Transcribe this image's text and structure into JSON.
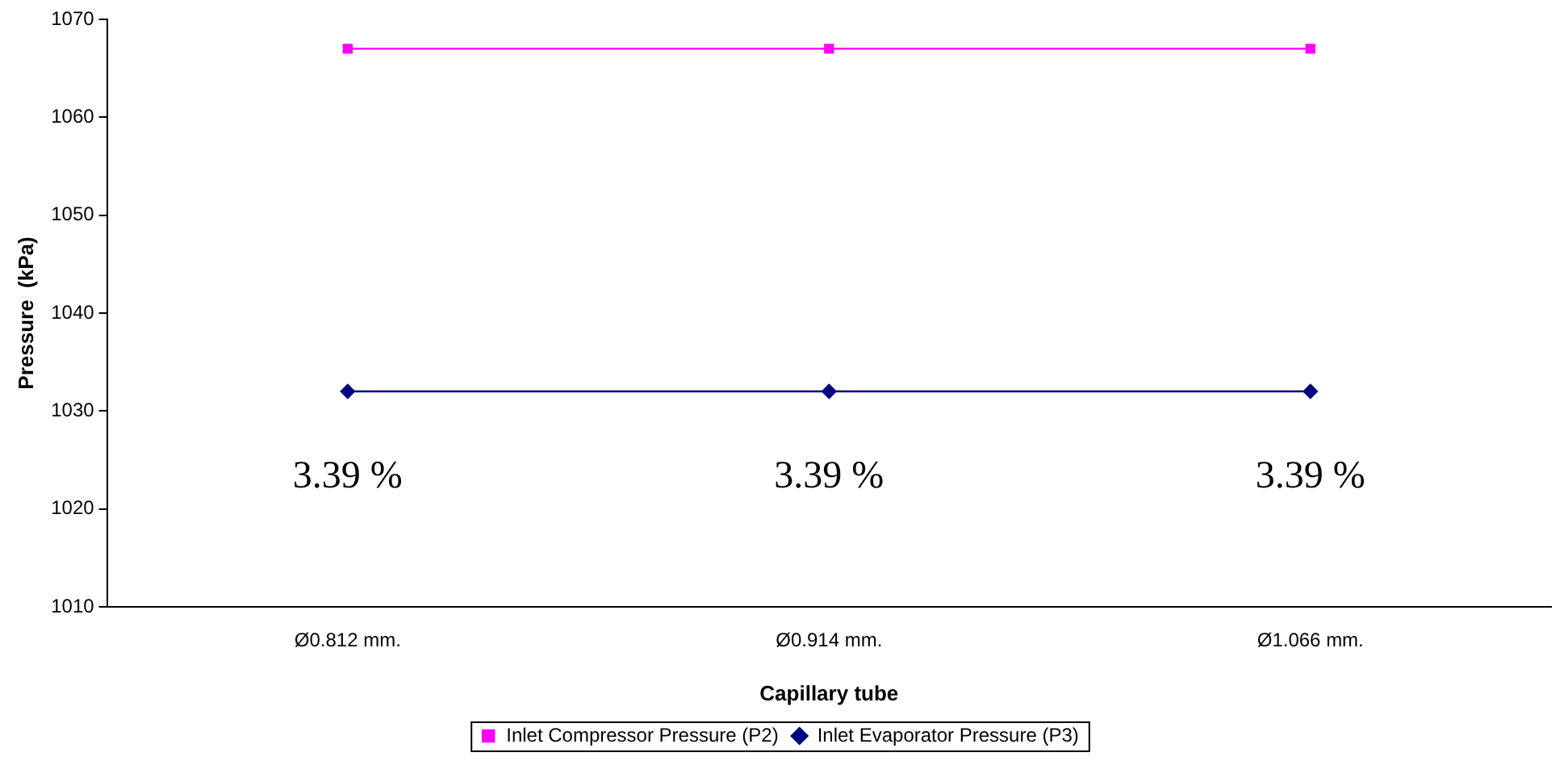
{
  "chart_data": {
    "type": "line",
    "xlabel": "Capillary tube",
    "ylabel": "Pressure  (kPa)",
    "categories": [
      "Ø0.812 mm.",
      "Ø0.914 mm.",
      "Ø1.066 mm."
    ],
    "series": [
      {
        "name": "Inlet Compressor Pressure (P2)",
        "color": "#ff00ff",
        "values": [
          1067,
          1067,
          1067
        ],
        "marker": "square"
      },
      {
        "name": "Inlet Evaporator Pressure (P3)",
        "color": "#000080",
        "values": [
          1032,
          1032,
          1032
        ],
        "marker": "diamond"
      }
    ],
    "ylim": [
      1010,
      1070
    ],
    "yticks": [
      1010,
      1020,
      1030,
      1040,
      1050,
      1060,
      1070
    ],
    "grid": false,
    "legend": "bottom",
    "annotations": [
      "3.39 %",
      "3.39 %",
      "3.39 %"
    ]
  }
}
